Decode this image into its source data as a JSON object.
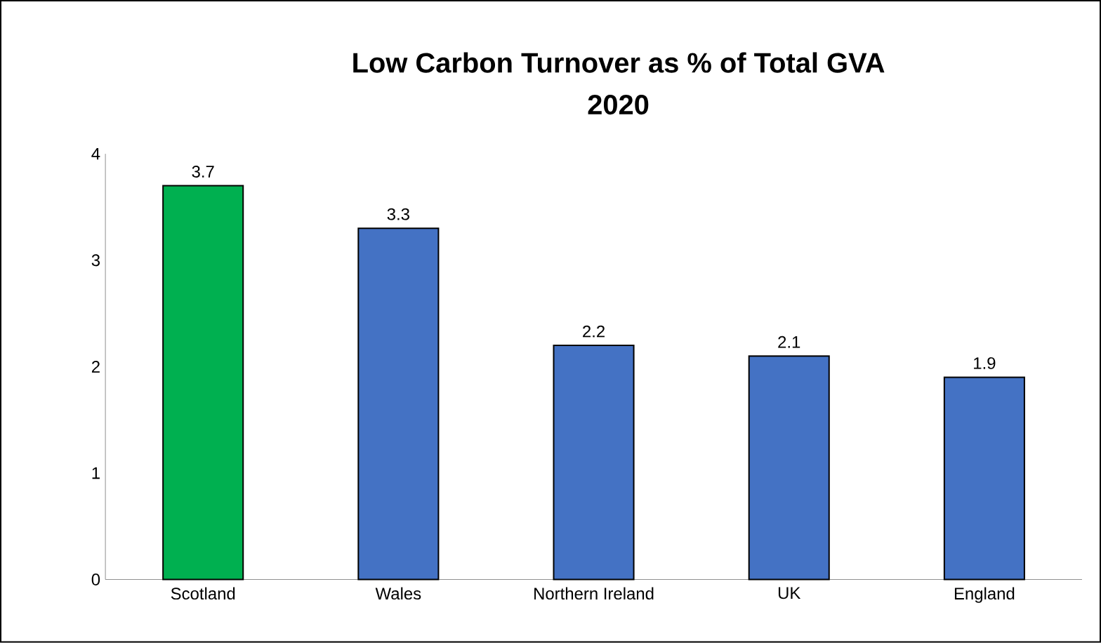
{
  "chart_data": {
    "type": "bar",
    "title": "Low Carbon Turnover as % of Total GVA",
    "subtitle": "2020",
    "categories": [
      "Scotland",
      "Wales",
      "Northern Ireland",
      "UK",
      "England"
    ],
    "values": [
      3.7,
      3.3,
      2.2,
      2.1,
      1.9
    ],
    "colors": [
      "#00b050",
      "#4472c4",
      "#4472c4",
      "#4472c4",
      "#4472c4"
    ],
    "ylim": [
      0,
      4
    ],
    "yticks": [
      0,
      1,
      2,
      3,
      4
    ],
    "grid": false,
    "data_labels": true
  }
}
